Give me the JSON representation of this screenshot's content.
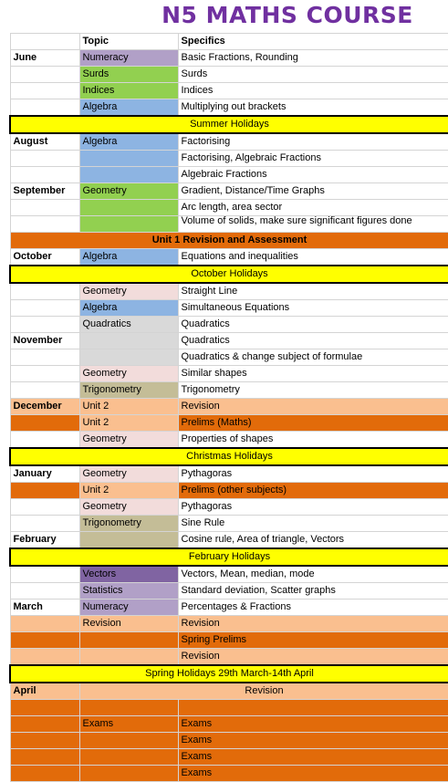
{
  "title": "N5 MATHS COURSE",
  "headers": {
    "topic": "Topic",
    "specifics": "Specifics"
  },
  "colors": {
    "numeracy": "#b1a0c7",
    "green": "#92d050",
    "blue": "#8db4e2",
    "yellow": "#ffff00",
    "orange": "#e26b0a",
    "peach": "#fabf8f",
    "pink": "#f2dcdb",
    "grey": "#d9d9d9",
    "tan": "#c4bd97",
    "purple": "#8064a2",
    "lavender": "#b1a0c7"
  },
  "rows": [
    {
      "month": "June",
      "topic": "Numeracy",
      "topic_color": "#b1a0c7",
      "specifics": "Basic Fractions, Rounding"
    },
    {
      "month": "",
      "topic": "Surds",
      "topic_color": "#92d050",
      "specifics": "Surds"
    },
    {
      "month": "",
      "topic": "Indices",
      "topic_color": "#92d050",
      "specifics": "Indices"
    },
    {
      "month": "",
      "topic": "Algebra",
      "topic_color": "#8db4e2",
      "specifics": "Multiplying out brackets"
    },
    {
      "span": "Summer Holidays",
      "span_color": "#ffff00",
      "boxed": true
    },
    {
      "month": "August",
      "topic": "Algebra",
      "topic_color": "#8db4e2",
      "specifics": "Factorising"
    },
    {
      "month": "",
      "topic": "",
      "topic_color": "#8db4e2",
      "specifics": "Factorising, Algebraic Fractions"
    },
    {
      "month": "",
      "topic": "",
      "topic_color": "#8db4e2",
      "specifics": "Algebraic Fractions"
    },
    {
      "month": "September",
      "topic": "Geometry",
      "topic_color": "#92d050",
      "specifics": "Gradient, Distance/Time Graphs"
    },
    {
      "month": "",
      "topic": "",
      "topic_color": "#92d050",
      "specifics": "Arc length, area sector"
    },
    {
      "month": "",
      "topic": "",
      "topic_color": "#92d050",
      "specifics": "Volume of solids, make sure significant figures done",
      "clip": true
    },
    {
      "span": "Unit 1 Revision and Assessment",
      "span_color": "#e26b0a",
      "bold": true
    },
    {
      "month": "October",
      "topic": "Algebra",
      "topic_color": "#8db4e2",
      "specifics": "Equations and inequalities"
    },
    {
      "span": "October Holidays",
      "span_color": "#ffff00",
      "boxed": true
    },
    {
      "month": "",
      "topic": "Geometry",
      "topic_color": "#f2dcdb",
      "specifics": "Straight Line"
    },
    {
      "month": "",
      "topic": "Algebra",
      "topic_color": "#8db4e2",
      "specifics": "Simultaneous Equations"
    },
    {
      "month": "",
      "topic": "Quadratics",
      "topic_color": "#d9d9d9",
      "specifics": "Quadratics"
    },
    {
      "month": "November",
      "topic": "",
      "topic_color": "#d9d9d9",
      "specifics": "Quadratics"
    },
    {
      "month": "",
      "topic": "",
      "topic_color": "#d9d9d9",
      "specifics": "Quadratics & change subject of formulae"
    },
    {
      "month": "",
      "topic": "Geometry",
      "topic_color": "#f2dcdb",
      "specifics": "Similar shapes"
    },
    {
      "month": "",
      "topic": "Trigonometry",
      "topic_color": "#c4bd97",
      "specifics": "Trigonometry"
    },
    {
      "month": "December",
      "month_color": "#fabf8f",
      "topic": "Unit 2",
      "topic_color": "#fabf8f",
      "specifics": "Revision",
      "spec_color": "#fabf8f"
    },
    {
      "month": "",
      "month_color": "#e26b0a",
      "topic": "Unit 2",
      "topic_color": "#fabf8f",
      "specifics": "Prelims (Maths)",
      "spec_color": "#e26b0a"
    },
    {
      "month": "",
      "topic": "Geometry",
      "topic_color": "#f2dcdb",
      "specifics": "Properties of shapes"
    },
    {
      "span": "Christmas Holidays",
      "span_color": "#ffff00",
      "boxed": true
    },
    {
      "month": "January",
      "topic": "Geometry",
      "topic_color": "#f2dcdb",
      "specifics": "Pythagoras"
    },
    {
      "month": "",
      "month_color": "#e26b0a",
      "topic": "Unit 2",
      "topic_color": "#fabf8f",
      "specifics": "Prelims (other subjects)",
      "spec_color": "#e26b0a"
    },
    {
      "month": "",
      "topic": "Geometry",
      "topic_color": "#f2dcdb",
      "specifics": "Pythagoras"
    },
    {
      "month": "",
      "topic": "Trigonometry",
      "topic_color": "#c4bd97",
      "specifics": "Sine Rule"
    },
    {
      "month": "February",
      "topic": "",
      "topic_color": "#c4bd97",
      "specifics": "Cosine rule, Area of triangle,  Vectors"
    },
    {
      "span": "February Holidays",
      "span_color": "#ffff00",
      "boxed": true
    },
    {
      "month": "",
      "topic": "Vectors",
      "topic_color": "#8064a2",
      "specifics": "Vectors, Mean, median, mode"
    },
    {
      "month": "",
      "topic": "Statistics",
      "topic_color": "#b1a0c7",
      "specifics": "Standard deviation, Scatter graphs"
    },
    {
      "month": "March",
      "topic": "Numeracy",
      "topic_color": "#b1a0c7",
      "specifics": "Percentages & Fractions"
    },
    {
      "month": "",
      "month_color": "#fabf8f",
      "topic": "Revision",
      "topic_color": "#fabf8f",
      "specifics": "Revision",
      "spec_color": "#fabf8f"
    },
    {
      "month": "",
      "month_color": "#e26b0a",
      "topic": "",
      "topic_color": "#e26b0a",
      "specifics": "Spring Prelims",
      "spec_color": "#e26b0a"
    },
    {
      "month": "",
      "month_color": "#fabf8f",
      "topic": "",
      "topic_color": "#fabf8f",
      "specifics": "Revision",
      "spec_color": "#fabf8f"
    },
    {
      "span": "Spring Holidays 29th March-14th April",
      "span_color": "#ffff00",
      "boxed": true
    },
    {
      "month": "April",
      "month_color": "#fabf8f",
      "span2": "Revision",
      "span2_color": "#fabf8f"
    },
    {
      "month": "",
      "month_color": "#e26b0a",
      "topic": "",
      "topic_color": "#e26b0a",
      "specifics": "",
      "spec_color": "#e26b0a"
    },
    {
      "month": "",
      "month_color": "#e26b0a",
      "topic": "Exams",
      "topic_color": "#e26b0a",
      "specifics": "Exams",
      "spec_color": "#e26b0a"
    },
    {
      "month": "",
      "month_color": "#e26b0a",
      "topic": "",
      "topic_color": "#e26b0a",
      "specifics": "Exams",
      "spec_color": "#e26b0a"
    },
    {
      "month": "",
      "month_color": "#e26b0a",
      "topic": "",
      "topic_color": "#e26b0a",
      "specifics": "Exams",
      "spec_color": "#e26b0a"
    },
    {
      "month": "",
      "month_color": "#e26b0a",
      "topic": "",
      "topic_color": "#e26b0a",
      "specifics": "Exams",
      "spec_color": "#e26b0a"
    }
  ]
}
